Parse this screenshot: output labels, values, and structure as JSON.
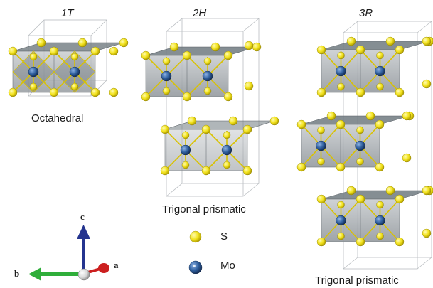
{
  "structures": [
    {
      "id": "1T",
      "title": "1T",
      "caption": "Octahedral"
    },
    {
      "id": "2H",
      "title": "2H",
      "caption": "Trigonal prismatic"
    },
    {
      "id": "3R",
      "title": "3R",
      "caption": "Trigonal prismatic"
    }
  ],
  "legend": [
    {
      "symbol": "S",
      "color": "#f2e21c"
    },
    {
      "symbol": "Mo",
      "color": "#2f5f9e"
    }
  ],
  "axes": {
    "a": "a",
    "b": "b",
    "c": "c"
  },
  "colors": {
    "sulfur": "#f2e21c",
    "molybdenum": "#2f5f9e",
    "polyhedron": "#9aa0a6",
    "axis_a": "#cc1f1f",
    "axis_b": "#2fae3a",
    "axis_c": "#24348f"
  }
}
